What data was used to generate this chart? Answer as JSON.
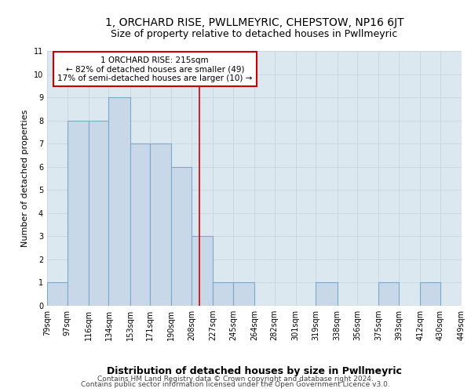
{
  "title": "1, ORCHARD RISE, PWLLMEYRIC, CHEPSTOW, NP16 6JT",
  "subtitle": "Size of property relative to detached houses in Pwllmeyric",
  "xlabel": "Distribution of detached houses by size in Pwllmeyric",
  "ylabel": "Number of detached properties",
  "bar_values": [
    1,
    8,
    8,
    9,
    7,
    7,
    6,
    3,
    1,
    1,
    0,
    0,
    0,
    1,
    0,
    0,
    1,
    0,
    1,
    0
  ],
  "bar_left_edges": [
    79,
    97,
    116,
    134,
    153,
    171,
    190,
    208,
    227,
    245,
    264,
    282,
    301,
    319,
    338,
    356,
    375,
    393,
    412,
    430
  ],
  "bar_widths": [
    18,
    19,
    18,
    19,
    18,
    19,
    18,
    19,
    18,
    19,
    18,
    19,
    18,
    19,
    18,
    19,
    18,
    19,
    18,
    19
  ],
  "tick_positions": [
    79,
    97,
    116,
    134,
    153,
    171,
    190,
    208,
    227,
    245,
    264,
    282,
    301,
    319,
    338,
    356,
    375,
    393,
    412,
    430,
    449
  ],
  "tick_labels": [
    "79sqm",
    "97sqm",
    "116sqm",
    "134sqm",
    "153sqm",
    "171sqm",
    "190sqm",
    "208sqm",
    "227sqm",
    "245sqm",
    "264sqm",
    "282sqm",
    "301sqm",
    "319sqm",
    "338sqm",
    "356sqm",
    "375sqm",
    "393sqm",
    "412sqm",
    "430sqm",
    "449sqm"
  ],
  "bar_color": "#c8d8e8",
  "bar_edgecolor": "#7aaac8",
  "bar_linewidth": 0.8,
  "vline_x": 215,
  "vline_color": "#cc0000",
  "vline_lw": 1.2,
  "annotation_text": "1 ORCHARD RISE: 215sqm\n← 82% of detached houses are smaller (49)\n17% of semi-detached houses are larger (10) →",
  "annotation_box_color": "#cc0000",
  "xlim": [
    79,
    449
  ],
  "ylim": [
    0,
    11
  ],
  "yticks": [
    0,
    1,
    2,
    3,
    4,
    5,
    6,
    7,
    8,
    9,
    10,
    11
  ],
  "grid_color": "#c8d4e0",
  "background_color": "#dce8f0",
  "footer1": "Contains HM Land Registry data © Crown copyright and database right 2024.",
  "footer2": "Contains public sector information licensed under the Open Government Licence v3.0.",
  "title_fontsize": 10,
  "subtitle_fontsize": 9,
  "xlabel_fontsize": 9,
  "ylabel_fontsize": 8,
  "tick_fontsize": 7,
  "footer_fontsize": 6.5,
  "annotation_fontsize": 7.5
}
